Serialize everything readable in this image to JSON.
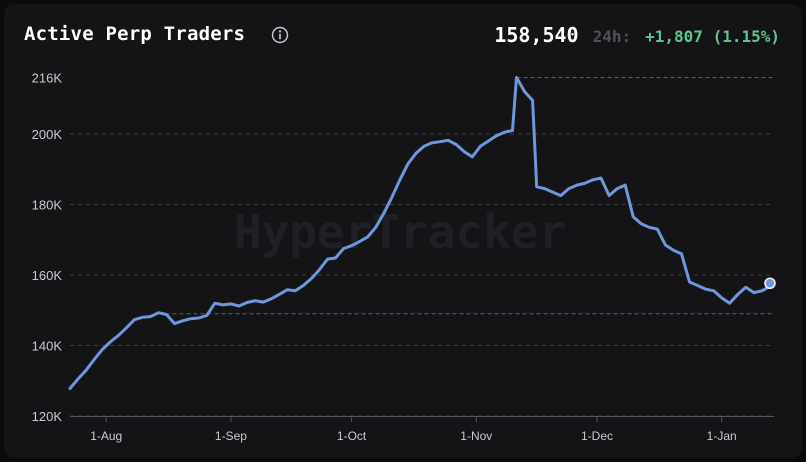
{
  "header": {
    "title": "Active Perp Traders",
    "info_icon": "info-circle-icon",
    "value": "158,540",
    "period_label": "24h:",
    "change": "+1,807 (1.15%)"
  },
  "colors": {
    "background": "#141417",
    "line": "#6f97dc",
    "positive": "#5fc48d",
    "grid": "#3c3e44",
    "text_muted": "#c9cbd0"
  },
  "watermark": {
    "brand": "HyperTracker",
    "line1": "...",
    "line2": "..."
  },
  "chart_data": {
    "type": "line",
    "x_unit": "date",
    "ylim": [
      120000,
      217000
    ],
    "xlim": [
      "2023-07-23",
      "2024-01-14"
    ],
    "y_ticks": [
      {
        "value": 216000,
        "label": "216K"
      },
      {
        "value": 200000,
        "label": "200K"
      },
      {
        "value": 180000,
        "label": "180K"
      },
      {
        "value": 160000,
        "label": "160K"
      },
      {
        "value": 140000,
        "label": "140K"
      },
      {
        "value": 120000,
        "label": "120K"
      }
    ],
    "x_ticks": [
      {
        "value": "2023-08-01",
        "label": "1-Aug"
      },
      {
        "value": "2023-09-01",
        "label": "1-Sep"
      },
      {
        "value": "2023-10-01",
        "label": "1-Oct"
      },
      {
        "value": "2023-11-01",
        "label": "1-Nov"
      },
      {
        "value": "2023-12-01",
        "label": "1-Dec"
      },
      {
        "value": "2024-01-01",
        "label": "1-Jan"
      }
    ],
    "grid": true,
    "legend": "none",
    "reference_lines": [
      216000,
      149000
    ],
    "series": [
      {
        "points": [
          [
            "2023-07-23",
            127800
          ],
          [
            "2023-07-25",
            130500
          ],
          [
            "2023-07-27",
            133000
          ],
          [
            "2023-07-29",
            136000
          ],
          [
            "2023-07-31",
            138800
          ],
          [
            "2023-08-02",
            141000
          ],
          [
            "2023-08-04",
            142800
          ],
          [
            "2023-08-06",
            145000
          ],
          [
            "2023-08-08",
            147300
          ],
          [
            "2023-08-10",
            148000
          ],
          [
            "2023-08-12",
            148200
          ],
          [
            "2023-08-14",
            149300
          ],
          [
            "2023-08-16",
            148800
          ],
          [
            "2023-08-18",
            146200
          ],
          [
            "2023-08-20",
            147000
          ],
          [
            "2023-08-22",
            147600
          ],
          [
            "2023-08-24",
            147800
          ],
          [
            "2023-08-26",
            148500
          ],
          [
            "2023-08-28",
            152000
          ],
          [
            "2023-08-30",
            151500
          ],
          [
            "2023-09-01",
            151800
          ],
          [
            "2023-09-03",
            151200
          ],
          [
            "2023-09-05",
            152200
          ],
          [
            "2023-09-07",
            152700
          ],
          [
            "2023-09-09",
            152300
          ],
          [
            "2023-09-11",
            153200
          ],
          [
            "2023-09-13",
            154500
          ],
          [
            "2023-09-15",
            155800
          ],
          [
            "2023-09-17",
            155500
          ],
          [
            "2023-09-19",
            157000
          ],
          [
            "2023-09-21",
            159000
          ],
          [
            "2023-09-23",
            161500
          ],
          [
            "2023-09-25",
            164500
          ],
          [
            "2023-09-27",
            164800
          ],
          [
            "2023-09-29",
            167500
          ],
          [
            "2023-10-01",
            168300
          ],
          [
            "2023-10-03",
            169500
          ],
          [
            "2023-10-05",
            170800
          ],
          [
            "2023-10-07",
            173500
          ],
          [
            "2023-10-09",
            177500
          ],
          [
            "2023-10-11",
            182000
          ],
          [
            "2023-10-13",
            187000
          ],
          [
            "2023-10-15",
            191500
          ],
          [
            "2023-10-17",
            194500
          ],
          [
            "2023-10-19",
            196500
          ],
          [
            "2023-10-21",
            197500
          ],
          [
            "2023-10-23",
            197800
          ],
          [
            "2023-10-25",
            198200
          ],
          [
            "2023-10-27",
            197000
          ],
          [
            "2023-10-29",
            195000
          ],
          [
            "2023-10-31",
            193500
          ],
          [
            "2023-11-02",
            196500
          ],
          [
            "2023-11-04",
            198000
          ],
          [
            "2023-11-06",
            199500
          ],
          [
            "2023-11-08",
            200500
          ],
          [
            "2023-11-10",
            201000
          ],
          [
            "2023-11-11",
            216000
          ],
          [
            "2023-11-13",
            212000
          ],
          [
            "2023-11-15",
            209500
          ],
          [
            "2023-11-16",
            185000
          ],
          [
            "2023-11-18",
            184500
          ],
          [
            "2023-11-20",
            183500
          ],
          [
            "2023-11-22",
            182500
          ],
          [
            "2023-11-24",
            184500
          ],
          [
            "2023-11-26",
            185500
          ],
          [
            "2023-11-28",
            186000
          ],
          [
            "2023-11-30",
            187000
          ],
          [
            "2023-12-02",
            187500
          ],
          [
            "2023-12-04",
            182500
          ],
          [
            "2023-12-06",
            184500
          ],
          [
            "2023-12-08",
            185500
          ],
          [
            "2023-12-10",
            176500
          ],
          [
            "2023-12-12",
            174500
          ],
          [
            "2023-12-14",
            173500
          ],
          [
            "2023-12-16",
            173000
          ],
          [
            "2023-12-18",
            168500
          ],
          [
            "2023-12-20",
            167000
          ],
          [
            "2023-12-22",
            166000
          ],
          [
            "2023-12-24",
            158000
          ],
          [
            "2023-12-26",
            157000
          ],
          [
            "2023-12-28",
            156000
          ],
          [
            "2023-12-30",
            155500
          ],
          [
            "2024-01-01",
            153500
          ],
          [
            "2024-01-03",
            152000
          ],
          [
            "2024-01-05",
            154500
          ],
          [
            "2024-01-07",
            156500
          ],
          [
            "2024-01-09",
            155000
          ],
          [
            "2024-01-11",
            155500
          ],
          [
            "2024-01-13",
            156800
          ]
        ]
      }
    ]
  }
}
